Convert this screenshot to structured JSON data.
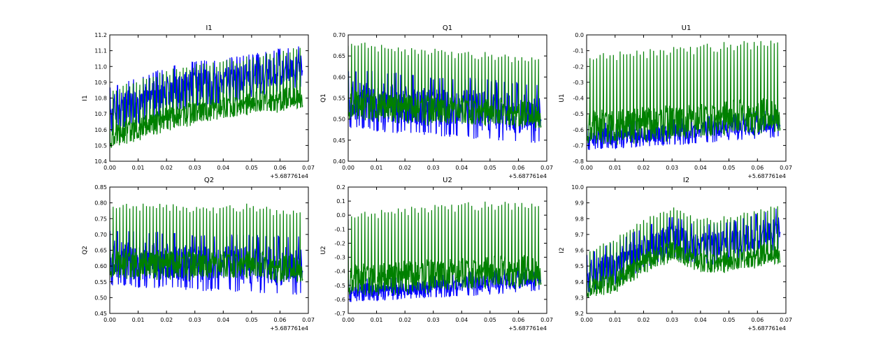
{
  "chart_data": [
    {
      "type": "line",
      "title": "I1",
      "ylabel": "I1",
      "xlabel": "",
      "x_offset_label": "+5.687761e4",
      "xlim": [
        0.0,
        0.07
      ],
      "ylim": [
        10.4,
        11.2
      ],
      "xticks": [
        "0.00",
        "0.01",
        "0.02",
        "0.03",
        "0.04",
        "0.05",
        "0.06",
        "0.07"
      ],
      "yticks": [
        "10.4",
        "10.5",
        "10.6",
        "10.7",
        "10.8",
        "10.9",
        "11.0",
        "11.1",
        "11.2"
      ],
      "grid": false,
      "series": [
        {
          "color": "#0000ff",
          "x": [
            0.0,
            0.01,
            0.02,
            0.03,
            0.04,
            0.05,
            0.06,
            0.068
          ],
          "lower": [
            10.58,
            10.64,
            10.7,
            10.74,
            10.76,
            10.8,
            10.84,
            10.86
          ],
          "upper": [
            10.88,
            10.93,
            11.0,
            11.04,
            11.05,
            11.08,
            11.12,
            11.14
          ]
        },
        {
          "color": "#008000",
          "x": [
            0.0,
            0.01,
            0.02,
            0.03,
            0.04,
            0.05,
            0.06,
            0.068
          ],
          "lower": [
            10.46,
            10.52,
            10.58,
            10.62,
            10.65,
            10.68,
            10.7,
            10.72
          ],
          "upper": [
            10.86,
            10.92,
            10.98,
            11.02,
            11.04,
            11.07,
            11.1,
            11.14
          ]
        }
      ]
    },
    {
      "type": "line",
      "title": "Q1",
      "ylabel": "Q1",
      "xlabel": "",
      "x_offset_label": "+5.687761e4",
      "xlim": [
        0.0,
        0.07
      ],
      "ylim": [
        0.4,
        0.7
      ],
      "xticks": [
        "0.00",
        "0.01",
        "0.02",
        "0.03",
        "0.04",
        "0.05",
        "0.06",
        "0.07"
      ],
      "yticks": [
        "0.40",
        "0.45",
        "0.50",
        "0.55",
        "0.60",
        "0.65",
        "0.70"
      ],
      "grid": false,
      "series": [
        {
          "color": "#0000ff",
          "x": [
            0.0,
            0.01,
            0.02,
            0.03,
            0.04,
            0.05,
            0.06,
            0.068
          ],
          "lower": [
            0.48,
            0.47,
            0.465,
            0.46,
            0.455,
            0.45,
            0.445,
            0.44
          ],
          "upper": [
            0.62,
            0.615,
            0.61,
            0.6,
            0.6,
            0.595,
            0.59,
            0.585
          ]
        },
        {
          "color": "#008000",
          "x": [
            0.0,
            0.01,
            0.02,
            0.03,
            0.04,
            0.05,
            0.06,
            0.068
          ],
          "lower": [
            0.49,
            0.49,
            0.485,
            0.48,
            0.48,
            0.475,
            0.475,
            0.47
          ],
          "upper": [
            0.69,
            0.68,
            0.67,
            0.67,
            0.66,
            0.66,
            0.65,
            0.65
          ]
        }
      ]
    },
    {
      "type": "line",
      "title": "U1",
      "ylabel": "U1",
      "xlabel": "",
      "x_offset_label": "+5.687761e4",
      "xlim": [
        0.0,
        0.07
      ],
      "ylim": [
        -0.8,
        0.0
      ],
      "xticks": [
        "0.00",
        "0.01",
        "0.02",
        "0.03",
        "0.04",
        "0.05",
        "0.06",
        "0.07"
      ],
      "yticks": [
        "-0.8",
        "-0.7",
        "-0.6",
        "-0.5",
        "-0.4",
        "-0.3",
        "-0.2",
        "-0.1",
        "0.0"
      ],
      "grid": false,
      "series": [
        {
          "color": "#0000ff",
          "x": [
            0.0,
            0.01,
            0.02,
            0.03,
            0.04,
            0.05,
            0.06,
            0.068
          ],
          "lower": [
            -0.73,
            -0.72,
            -0.71,
            -0.7,
            -0.69,
            -0.67,
            -0.66,
            -0.65
          ],
          "upper": [
            -0.56,
            -0.55,
            -0.54,
            -0.53,
            -0.52,
            -0.5,
            -0.48,
            -0.46
          ]
        },
        {
          "color": "#008000",
          "x": [
            0.0,
            0.01,
            0.02,
            0.03,
            0.04,
            0.05,
            0.06,
            0.068
          ],
          "lower": [
            -0.72,
            -0.71,
            -0.7,
            -0.69,
            -0.68,
            -0.66,
            -0.65,
            -0.64
          ],
          "upper": [
            -0.12,
            -0.1,
            -0.09,
            -0.07,
            -0.06,
            -0.04,
            -0.03,
            -0.02
          ]
        }
      ]
    },
    {
      "type": "line",
      "title": "Q2",
      "ylabel": "Q2",
      "xlabel": "",
      "x_offset_label": "+5.687761e4",
      "xlim": [
        0.0,
        0.07
      ],
      "ylim": [
        0.45,
        0.85
      ],
      "xticks": [
        "0.00",
        "0.01",
        "0.02",
        "0.03",
        "0.04",
        "0.05",
        "0.06",
        "0.07"
      ],
      "yticks": [
        "0.45",
        "0.50",
        "0.55",
        "0.60",
        "0.65",
        "0.70",
        "0.75",
        "0.80",
        "0.85"
      ],
      "grid": false,
      "series": [
        {
          "color": "#0000ff",
          "x": [
            0.0,
            0.01,
            0.02,
            0.03,
            0.04,
            0.05,
            0.06,
            0.068
          ],
          "lower": [
            0.54,
            0.53,
            0.53,
            0.52,
            0.52,
            0.515,
            0.51,
            0.505
          ],
          "upper": [
            0.72,
            0.71,
            0.71,
            0.7,
            0.7,
            0.7,
            0.7,
            0.7
          ]
        },
        {
          "color": "#008000",
          "x": [
            0.0,
            0.01,
            0.02,
            0.03,
            0.04,
            0.05,
            0.06,
            0.068
          ],
          "lower": [
            0.55,
            0.55,
            0.55,
            0.55,
            0.55,
            0.55,
            0.54,
            0.54
          ],
          "upper": [
            0.8,
            0.8,
            0.8,
            0.79,
            0.79,
            0.8,
            0.78,
            0.78
          ]
        }
      ]
    },
    {
      "type": "line",
      "title": "U2",
      "ylabel": "U2",
      "xlabel": "",
      "x_offset_label": "+5.687761e4",
      "xlim": [
        0.0,
        0.07
      ],
      "ylim": [
        -0.7,
        0.2
      ],
      "xticks": [
        "0.00",
        "0.01",
        "0.02",
        "0.03",
        "0.04",
        "0.05",
        "0.06",
        "0.07"
      ],
      "yticks": [
        "-0.7",
        "-0.6",
        "-0.5",
        "-0.4",
        "-0.3",
        "-0.2",
        "-0.1",
        "0.0",
        "0.1",
        "0.2"
      ],
      "grid": false,
      "series": [
        {
          "color": "#0000ff",
          "x": [
            0.0,
            0.01,
            0.02,
            0.03,
            0.04,
            0.05,
            0.06,
            0.068
          ],
          "lower": [
            -0.62,
            -0.61,
            -0.6,
            -0.59,
            -0.58,
            -0.57,
            -0.55,
            -0.54
          ],
          "upper": [
            -0.45,
            -0.45,
            -0.44,
            -0.43,
            -0.41,
            -0.39,
            -0.37,
            -0.36
          ]
        },
        {
          "color": "#008000",
          "x": [
            0.0,
            0.01,
            0.02,
            0.03,
            0.04,
            0.05,
            0.06,
            0.068
          ],
          "lower": [
            -0.6,
            -0.59,
            -0.58,
            -0.57,
            -0.56,
            -0.55,
            -0.54,
            -0.53
          ],
          "upper": [
            0.02,
            0.04,
            0.06,
            0.08,
            0.09,
            0.1,
            0.1,
            0.09
          ]
        }
      ]
    },
    {
      "type": "line",
      "title": "I2",
      "ylabel": "I2",
      "xlabel": "",
      "x_offset_label": "+5.687761e4",
      "xlim": [
        0.0,
        0.07
      ],
      "ylim": [
        9.2,
        10.0
      ],
      "xticks": [
        "0.00",
        "0.01",
        "0.02",
        "0.03",
        "0.04",
        "0.05",
        "0.06",
        "0.07"
      ],
      "yticks": [
        "9.2",
        "9.3",
        "9.4",
        "9.5",
        "9.6",
        "9.7",
        "9.8",
        "9.9",
        "10.0"
      ],
      "grid": false,
      "series": [
        {
          "color": "#0000ff",
          "x": [
            0.0,
            0.01,
            0.02,
            0.03,
            0.04,
            0.05,
            0.06,
            0.068
          ],
          "lower": [
            9.33,
            9.38,
            9.48,
            9.55,
            9.5,
            9.52,
            9.56,
            9.6
          ],
          "upper": [
            9.58,
            9.66,
            9.75,
            9.82,
            9.76,
            9.78,
            9.84,
            9.88
          ]
        },
        {
          "color": "#008000",
          "x": [
            0.0,
            0.01,
            0.02,
            0.03,
            0.04,
            0.05,
            0.06,
            0.068
          ],
          "lower": [
            9.28,
            9.32,
            9.44,
            9.52,
            9.44,
            9.44,
            9.48,
            9.5
          ],
          "upper": [
            9.6,
            9.68,
            9.8,
            9.88,
            9.8,
            9.82,
            9.86,
            9.9
          ]
        }
      ]
    }
  ]
}
